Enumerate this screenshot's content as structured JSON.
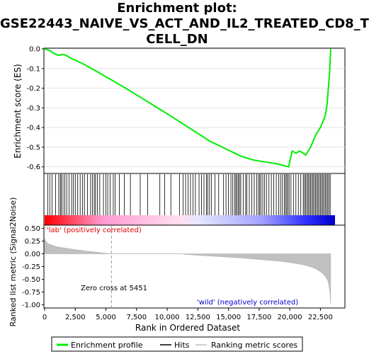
{
  "title_line1": "Enrichment plot:",
  "title_line2": "GSE22443_NAIVE_VS_ACT_AND_IL2_TREATED_CD8_T",
  "title_line3": "CELL_DN",
  "chart_data": {
    "type": "line",
    "top_panel": {
      "ylabel": "Enrichment score (ES)",
      "ylim": [
        -0.63,
        0.0
      ],
      "yticks": [
        0.0,
        -0.1,
        -0.2,
        -0.3,
        -0.4,
        -0.5,
        -0.6
      ],
      "ytick_labels": [
        "0.0",
        "-0.1",
        "-0.2",
        "-0.3",
        "-0.4",
        "-0.5",
        "-0.6"
      ],
      "series": [
        {
          "name": "Enrichment profile",
          "color": "#00ee00",
          "x": [
            0,
            250,
            500,
            800,
            1100,
            1300,
            1600,
            1900,
            2200,
            2600,
            3000,
            3400,
            3800,
            4200,
            4600,
            5000,
            5500,
            6000,
            6500,
            7000,
            7500,
            8000,
            8500,
            9000,
            9500,
            10000,
            10500,
            11000,
            11500,
            12000,
            12500,
            13000,
            13500,
            14000,
            14500,
            15000,
            15500,
            16000,
            16500,
            17000,
            17500,
            18000,
            18500,
            19000,
            19300,
            19600,
            19900,
            20200,
            20500,
            20800,
            21100,
            21300,
            21500,
            21700,
            21900,
            22100,
            22300,
            22500,
            22700,
            22900,
            23050,
            23150,
            23250,
            23300,
            23336
          ],
          "y": [
            0.0,
            -0.005,
            -0.012,
            -0.025,
            -0.033,
            -0.03,
            -0.03,
            -0.038,
            -0.05,
            -0.06,
            -0.072,
            -0.085,
            -0.1,
            -0.113,
            -0.127,
            -0.142,
            -0.16,
            -0.178,
            -0.196,
            -0.215,
            -0.234,
            -0.253,
            -0.272,
            -0.292,
            -0.311,
            -0.33,
            -0.35,
            -0.37,
            -0.39,
            -0.41,
            -0.43,
            -0.45,
            -0.47,
            -0.485,
            -0.5,
            -0.515,
            -0.53,
            -0.545,
            -0.555,
            -0.565,
            -0.57,
            -0.575,
            -0.58,
            -0.585,
            -0.59,
            -0.595,
            -0.6,
            -0.52,
            -0.53,
            -0.52,
            -0.53,
            -0.54,
            -0.52,
            -0.5,
            -0.47,
            -0.44,
            -0.42,
            -0.4,
            -0.37,
            -0.34,
            -0.28,
            -0.2,
            -0.12,
            -0.05,
            0.0
          ]
        }
      ]
    },
    "hits_panel": {
      "legend_entry": "Hits",
      "hit_ranks": [
        250,
        420,
        600,
        900,
        1150,
        1280,
        1350,
        1500,
        1650,
        1800,
        2000,
        2200,
        2350,
        2500,
        2700,
        2900,
        3100,
        3250,
        3500,
        3750,
        3900,
        4050,
        4150,
        4300,
        4500,
        4800,
        5000,
        5150,
        5350,
        5600,
        5750,
        6100,
        6500,
        7000,
        7800,
        8400,
        9400,
        9800,
        10300,
        11000,
        11300,
        11500,
        11700,
        11900,
        12100,
        12300,
        12600,
        12800,
        13000,
        13200,
        13300,
        13450,
        13600,
        13900,
        14200,
        14600,
        14800,
        15000,
        15200,
        15350,
        15500,
        15600,
        15700,
        15800,
        15900,
        16000,
        16200,
        16400,
        16500,
        16700,
        16900,
        17100,
        17300,
        17450,
        17550,
        17650,
        17800,
        17950,
        18100,
        18300,
        18500,
        18700,
        18900,
        19100,
        19250,
        19400,
        19550,
        19650,
        19750,
        19850,
        19950,
        20100,
        20300,
        20500,
        20700,
        20900,
        21100,
        21200,
        21300,
        21400,
        21500,
        21600,
        21700,
        21800,
        21900,
        22000,
        22100,
        22200,
        22300,
        22400,
        22500,
        22600,
        22700,
        22800,
        22900,
        23000,
        23100,
        23200,
        23300
      ]
    },
    "metric_panel": {
      "ylabel": "Ranked list metric (Signal2Noise)",
      "ylim": [
        -1.05,
        0.55
      ],
      "yticks": [
        0.5,
        0.25,
        0.0,
        -0.25,
        -0.5,
        -0.75,
        -1.0
      ],
      "ytick_labels": [
        "0.50",
        "0.25",
        "0.00",
        "-0.25",
        "-0.50",
        "-0.75",
        "-1.00"
      ],
      "fill_color": "#c0c0c0",
      "legend_entry": "Ranking metric scores",
      "x": [
        0,
        100,
        300,
        600,
        1000,
        1500,
        2000,
        2500,
        3000,
        3500,
        4000,
        4500,
        5000,
        5451,
        6000,
        8000,
        10000,
        11000,
        12000,
        14000,
        16000,
        18000,
        19000,
        20000,
        20500,
        21000,
        21500,
        22000,
        22300,
        22600,
        22900,
        23100,
        23200,
        23300,
        23336
      ],
      "y": [
        0.3,
        0.25,
        0.2,
        0.17,
        0.14,
        0.12,
        0.1,
        0.08,
        0.07,
        0.05,
        0.04,
        0.025,
        0.012,
        0.0,
        0.0,
        0.0,
        0.0,
        0.0,
        -0.02,
        -0.05,
        -0.08,
        -0.12,
        -0.14,
        -0.17,
        -0.19,
        -0.21,
        -0.24,
        -0.28,
        -0.32,
        -0.37,
        -0.44,
        -0.53,
        -0.63,
        -0.8,
        -1.0
      ]
    },
    "xlabel": "Rank in Ordered Dataset",
    "xlim": [
      0,
      24500
    ],
    "xticks": [
      0,
      2500,
      5000,
      7500,
      10000,
      12500,
      15000,
      17500,
      20000,
      22500
    ],
    "xtick_labels": [
      "0",
      "2,500",
      "5,000",
      "7,500",
      "10,000",
      "12,500",
      "15,000",
      "17,500",
      "20,000",
      "22,500"
    ],
    "n_genes": 23336,
    "zero_cross": 5451,
    "annotations": {
      "pos_label": "'lab' (positively correlated)",
      "neg_label": "'wild' (negatively correlated)",
      "zero_cross_label": "Zero cross at 5451"
    },
    "legend": {
      "placement": "bottom",
      "entries": [
        "Enrichment profile",
        "Hits",
        "Ranking metric scores"
      ]
    }
  }
}
